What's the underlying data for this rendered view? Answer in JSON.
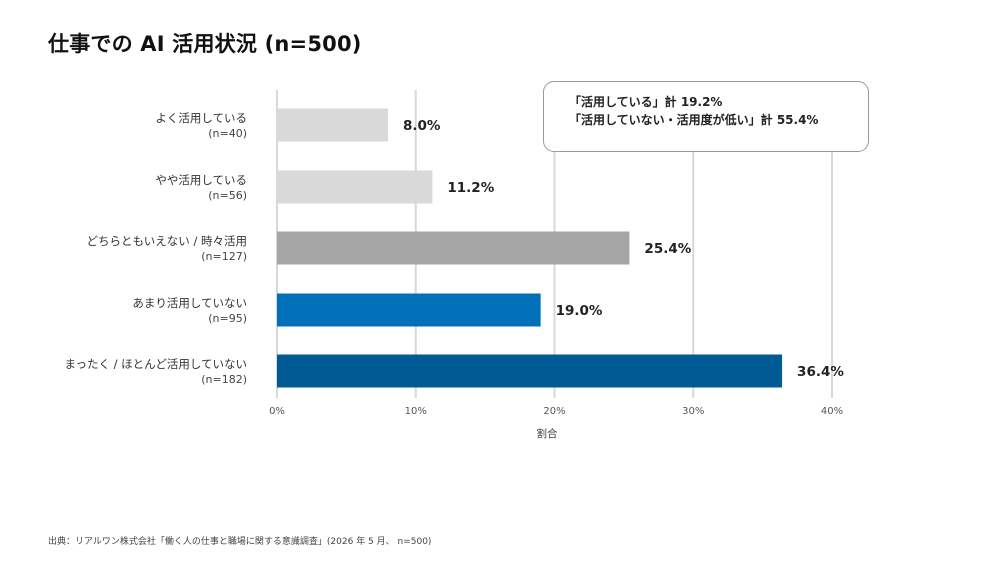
{
  "chart_data": {
    "type": "bar",
    "orientation": "horizontal",
    "title": "仕事での AI 活用状況 (n=500)",
    "categories": [
      {
        "label": "よく活用している",
        "sublabel": "(n=40)"
      },
      {
        "label": "やや活用している",
        "sublabel": "(n=56)"
      },
      {
        "label": "どちらともいえない / 時々活用",
        "sublabel": "(n=127)"
      },
      {
        "label": "あまり活用していない",
        "sublabel": "(n=95)"
      },
      {
        "label": "まったく / ほとんど活用していない",
        "sublabel": "(n=182)"
      }
    ],
    "values": [
      8.0,
      11.2,
      25.4,
      19.0,
      36.4
    ],
    "value_labels": [
      "8.0%",
      "11.2%",
      "25.4%",
      "19.0%",
      "36.4%"
    ],
    "bar_colors": [
      "#d9d9d9",
      "#d9d9d9",
      "#a6a6a6",
      "#0070b8",
      "#005a94"
    ],
    "xlim": [
      0,
      40
    ],
    "xticks": [
      0,
      10,
      20,
      30,
      40
    ],
    "xtick_labels": [
      "0%",
      "10%",
      "20%",
      "30%",
      "40%"
    ],
    "xlabel": "割合",
    "ylabel": "",
    "grid": true,
    "annotation": {
      "line1": "「活用している」計 19.2%",
      "line2": "「活用していない・活用度が低い」計 55.4%",
      "placement": "top-right"
    }
  },
  "source": "出典：リアルワン株式会社「働く人の仕事と職場に関する意識調査」(2026 年 5 月、 n=500)"
}
